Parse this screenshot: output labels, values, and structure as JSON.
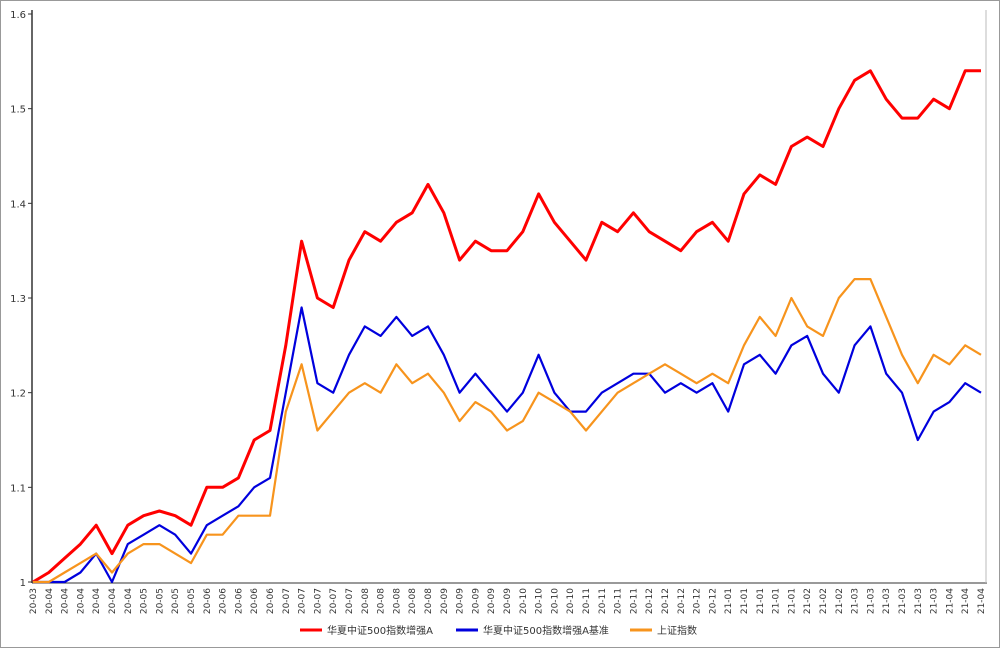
{
  "chart_data": {
    "type": "line",
    "categories": [
      "20-03",
      "20-04",
      "20-04",
      "20-04",
      "20-04",
      "20-04",
      "20-04",
      "20-05",
      "20-05",
      "20-05",
      "20-05",
      "20-06",
      "20-06",
      "20-06",
      "20-06",
      "20-06",
      "20-07",
      "20-07",
      "20-07",
      "20-07",
      "20-07",
      "20-08",
      "20-08",
      "20-08",
      "20-08",
      "20-08",
      "20-09",
      "20-09",
      "20-09",
      "20-09",
      "20-09",
      "20-10",
      "20-10",
      "20-10",
      "20-10",
      "20-11",
      "20-11",
      "20-11",
      "20-11",
      "20-12",
      "20-12",
      "20-12",
      "20-12",
      "20-12",
      "21-01",
      "21-01",
      "21-01",
      "21-01",
      "21-01",
      "21-02",
      "21-02",
      "21-02",
      "21-03",
      "21-03",
      "21-03",
      "21-03",
      "21-03",
      "21-03",
      "21-04",
      "21-04",
      "21-04"
    ],
    "series": [
      {
        "name": "华夏中证500指数增强A",
        "color": "#ff0000",
        "values": [
          1.0,
          1.01,
          1.025,
          1.04,
          1.06,
          1.03,
          1.06,
          1.07,
          1.075,
          1.07,
          1.06,
          1.1,
          1.1,
          1.11,
          1.15,
          1.16,
          1.25,
          1.36,
          1.3,
          1.29,
          1.34,
          1.37,
          1.36,
          1.38,
          1.39,
          1.42,
          1.39,
          1.34,
          1.36,
          1.35,
          1.35,
          1.37,
          1.41,
          1.38,
          1.36,
          1.34,
          1.38,
          1.37,
          1.39,
          1.37,
          1.36,
          1.35,
          1.37,
          1.38,
          1.36,
          1.41,
          1.43,
          1.42,
          1.46,
          1.47,
          1.46,
          1.5,
          1.53,
          1.54,
          1.51,
          1.49,
          1.49,
          1.51,
          1.5,
          1.54,
          1.54
        ]
      },
      {
        "name": "华夏中证500指数增强A基准",
        "color": "#0000dd",
        "values": [
          1.0,
          1.0,
          1.0,
          1.01,
          1.03,
          1.0,
          1.04,
          1.05,
          1.06,
          1.05,
          1.03,
          1.06,
          1.07,
          1.08,
          1.1,
          1.11,
          1.2,
          1.29,
          1.21,
          1.2,
          1.24,
          1.27,
          1.26,
          1.28,
          1.26,
          1.27,
          1.24,
          1.2,
          1.22,
          1.2,
          1.18,
          1.2,
          1.24,
          1.2,
          1.18,
          1.18,
          1.2,
          1.21,
          1.22,
          1.22,
          1.2,
          1.21,
          1.2,
          1.21,
          1.18,
          1.23,
          1.24,
          1.22,
          1.25,
          1.26,
          1.22,
          1.2,
          1.25,
          1.27,
          1.22,
          1.2,
          1.15,
          1.18,
          1.19,
          1.21,
          1.2
        ]
      },
      {
        "name": "上证指数",
        "color": "#f7941d",
        "values": [
          1.0,
          1.0,
          1.01,
          1.02,
          1.03,
          1.01,
          1.03,
          1.04,
          1.04,
          1.03,
          1.02,
          1.05,
          1.05,
          1.07,
          1.07,
          1.07,
          1.18,
          1.23,
          1.16,
          1.18,
          1.2,
          1.21,
          1.2,
          1.23,
          1.21,
          1.22,
          1.2,
          1.17,
          1.19,
          1.18,
          1.16,
          1.17,
          1.2,
          1.19,
          1.18,
          1.16,
          1.18,
          1.2,
          1.21,
          1.22,
          1.23,
          1.22,
          1.21,
          1.22,
          1.21,
          1.25,
          1.28,
          1.26,
          1.3,
          1.27,
          1.26,
          1.3,
          1.32,
          1.32,
          1.28,
          1.24,
          1.21,
          1.24,
          1.23,
          1.25,
          1.24
        ]
      }
    ],
    "ylim": [
      1,
      1.6
    ],
    "yticks": [
      1,
      1.1,
      1.2,
      1.3,
      1.4,
      1.5,
      1.6
    ],
    "grid": false
  }
}
